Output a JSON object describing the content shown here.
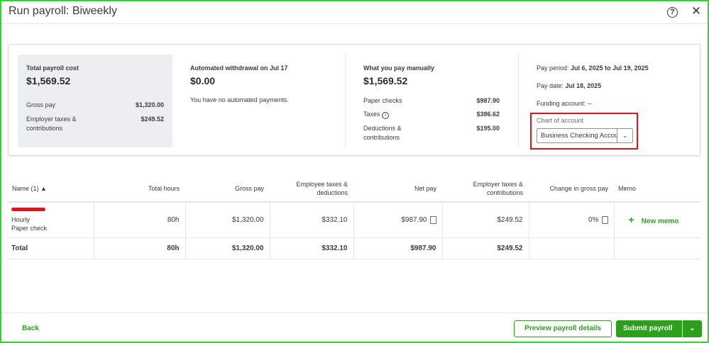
{
  "header": {
    "title": "Run payroll: Biweekly",
    "help": "?",
    "close": "✕"
  },
  "summary": {
    "total": {
      "label": "Total payroll cost",
      "amount": "$1,569.52",
      "gross_label": "Gross pay",
      "gross": "$1,320.00",
      "employer_label_1": "Employer taxes &",
      "employer_label_2": "contributions",
      "employer": "$249.52"
    },
    "auto": {
      "label": "Automated withdrawal on Jul 17",
      "amount": "$0.00",
      "note": "You have no automated payments."
    },
    "manual": {
      "label": "What you pay manually",
      "amount": "$1,569.52",
      "checks_label": "Paper checks",
      "checks": "$987.90",
      "taxes_label": "Taxes",
      "taxes": "$386.62",
      "ded_label_1": "Deductions &",
      "ded_label_2": "contributions",
      "ded": "$195.00"
    },
    "info": {
      "period_label": "Pay period:",
      "period": "Jul 6, 2025 to Jul 19, 2025",
      "date_label": "Pay date:",
      "date": "Jul 18, 2025",
      "funding": "Funding account: --",
      "coa_label": "Chart of account",
      "coa_value": "Business Checking Account"
    }
  },
  "table": {
    "headers": [
      "Name (1) ▲",
      "Total hours",
      "Gross pay",
      "Employee taxes & deductions",
      "Net pay",
      "Employer taxes & contributions",
      "Change in gross pay",
      "Memo"
    ],
    "row": {
      "type": "Hourly",
      "method": "Paper check",
      "hours": "80h",
      "gross": "$1,320.00",
      "emp_taxes": "$332.10",
      "net": "$987.90",
      "employer": "$249.52",
      "change": "0%",
      "memo": "New memo"
    },
    "total": {
      "label": "Total",
      "hours": "80h",
      "gross": "$1,320.00",
      "emp_taxes": "$332.10",
      "net": "$987.90",
      "employer": "$249.52"
    }
  },
  "footer": {
    "back": "Back",
    "preview": "Preview payroll details",
    "submit": "Submit payroll"
  },
  "colors": {
    "accent": "#2ca01c",
    "highlight": "#e0131d"
  }
}
